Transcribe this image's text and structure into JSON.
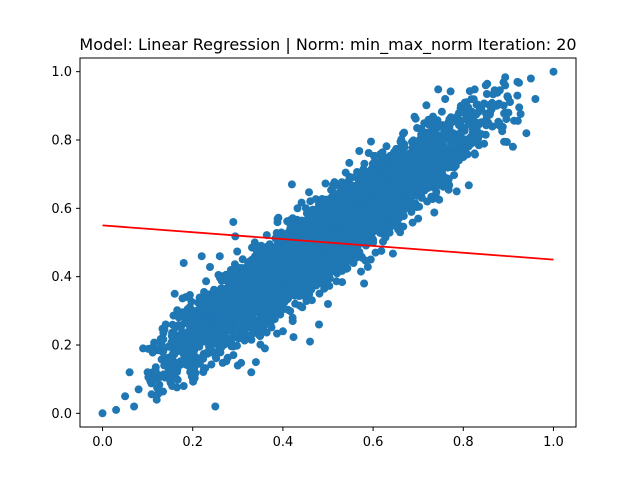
{
  "chart_data": {
    "type": "scatter",
    "title": "Model: Linear Regression | Norm: min_max_norm  Iteration: 20",
    "xlabel": "",
    "ylabel": "",
    "xlim": [
      -0.05,
      1.05
    ],
    "ylim": [
      -0.04,
      1.04
    ],
    "xticks": [
      "0.0",
      "0.2",
      "0.4",
      "0.6",
      "0.8",
      "1.0"
    ],
    "yticks": [
      "0.0",
      "0.2",
      "0.4",
      "0.6",
      "0.8",
      "1.0"
    ],
    "grid": false,
    "legend": "none",
    "series": [
      {
        "kind": "scatter",
        "color": "#1f77b4",
        "points": [
          [
            0.0,
            0.0
          ],
          [
            1.0,
            1.0
          ],
          [
            0.03,
            0.01
          ],
          [
            0.06,
            0.12
          ],
          [
            0.07,
            0.02
          ],
          [
            0.05,
            0.05
          ],
          [
            0.09,
            0.19
          ],
          [
            0.08,
            0.07
          ],
          [
            0.1,
            0.12
          ],
          [
            0.12,
            0.04
          ],
          [
            0.12,
            0.1
          ],
          [
            0.14,
            0.26
          ],
          [
            0.16,
            0.35
          ],
          [
            0.18,
            0.44
          ],
          [
            0.18,
            0.08
          ],
          [
            0.2,
            0.11
          ],
          [
            0.22,
            0.46
          ],
          [
            0.25,
            0.02
          ],
          [
            0.3,
            0.14
          ],
          [
            0.29,
            0.56
          ],
          [
            0.33,
            0.12
          ],
          [
            0.34,
            0.15
          ],
          [
            0.36,
            0.19
          ],
          [
            0.4,
            0.24
          ],
          [
            0.42,
            0.67
          ],
          [
            0.46,
            0.21
          ],
          [
            0.48,
            0.26
          ],
          [
            0.5,
            0.32
          ],
          [
            0.53,
            0.44
          ],
          [
            0.54,
            0.55
          ],
          [
            0.58,
            0.38
          ],
          [
            0.6,
            0.5
          ],
          [
            0.66,
            0.53
          ],
          [
            0.7,
            0.57
          ],
          [
            0.72,
            0.62
          ],
          [
            0.75,
            0.74
          ],
          [
            0.78,
            0.72
          ],
          [
            0.8,
            0.75
          ],
          [
            0.84,
            0.9
          ],
          [
            0.87,
            0.94
          ],
          [
            0.88,
            0.85
          ],
          [
            0.9,
            0.88
          ],
          [
            0.92,
            0.93
          ],
          [
            0.92,
            0.97
          ],
          [
            0.94,
            0.82
          ],
          [
            0.95,
            0.98
          ],
          [
            0.96,
            0.92
          ],
          [
            0.91,
            0.78
          ],
          [
            0.85,
            0.96
          ],
          [
            0.83,
            0.83
          ],
          [
            0.76,
            0.92
          ],
          [
            0.68,
            0.76
          ],
          [
            0.62,
            0.63
          ],
          [
            0.44,
            0.37
          ],
          [
            0.38,
            0.42
          ],
          [
            0.26,
            0.46
          ]
        ],
        "cloud": {
          "x_center": 0.48,
          "x_spread": 0.16,
          "trend_slope": 0.98,
          "trend_intercept": 0.03,
          "noise": 0.055,
          "x_range": [
            0.1,
            0.93
          ],
          "count": 5000
        }
      },
      {
        "kind": "line",
        "color": "#ff0000",
        "x": [
          0.0,
          1.0
        ],
        "y": [
          0.55,
          0.45
        ]
      }
    ]
  }
}
